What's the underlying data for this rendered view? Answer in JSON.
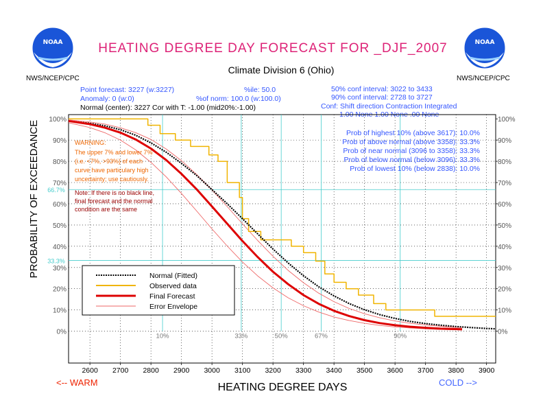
{
  "header": {
    "title": "HEATING DEGREE DAY FORECAST FOR _DJF_2007",
    "subtitle": "Climate Division 6 (Ohio)",
    "org_left": "NWS/NCEP/CPC",
    "org_right": "NWS/NCEP/CPC",
    "logo_text": "NOAA"
  },
  "info": {
    "point_forecast": "Point forecast: 3227 (w:3227)",
    "percentile": "%ile: 50.0",
    "anomaly": "Anomaly: 0 (w:0)",
    "pct_norm": "%of norm:  100.0 (w:100.0)",
    "normal_center": "Normal (center): 3227 Cor with T: -1.00 (mid20%:-1.00)",
    "conf50": "50% conf interval: 3022 to 3433",
    "conf90": "90% conf interval: 2728 to 3727",
    "conf_header": "Conf: Shift direction   Contraction  Integrated",
    "conf_values": "1.00 None        1.00 None  .00 None"
  },
  "probs": [
    "Prob of highest 10% (above 3617): 10.0%",
    "Prob of above normal (above 3358): 33.3%",
    "Prob of near normal (3096 to 3358): 33.3%",
    "Prob of below normal (below 3096): 33.3%",
    "Prob of lowest 10% (below 2838): 10.0%"
  ],
  "warning": {
    "title": "WARNING:",
    "lines": [
      "The upper 7% and lower 7%",
      "(i.e. <7%, >93%) of each",
      "curve have particulary high",
      "uncertainty; use cautiously."
    ]
  },
  "note": {
    "lines": [
      "Note: If there is no black line,",
      "final forecast and  the normal",
      "condition are the same"
    ]
  },
  "side_labels": {
    "left_high": "66.7%",
    "left_low": "33.3%"
  },
  "colors": {
    "title": "#dd2277",
    "normal": "#000000",
    "observed": "#f0b400",
    "forecast": "#dd0000",
    "envelope": "#ee6666",
    "info_blue": "#3355ff",
    "warning": "#ee6600",
    "note": "#990000",
    "cyan": "#44cccc",
    "nav_red": "#ee2200",
    "nav_blue": "#4466ff"
  },
  "nav": {
    "warm": "<-- WARM",
    "cold": "COLD -->"
  },
  "chart_data": {
    "type": "line",
    "xlabel": "HEATING DEGREE DAYS",
    "ylabel": "PROBABILITY OF EXCEEDANCE",
    "xlim": [
      2530,
      3930
    ],
    "ylim": [
      -15,
      102
    ],
    "x_ticks": [
      2600,
      2700,
      2800,
      2900,
      3000,
      3100,
      3200,
      3300,
      3400,
      3500,
      3600,
      3700,
      3800,
      3900
    ],
    "y_ticks": [
      0,
      10,
      20,
      30,
      40,
      50,
      60,
      70,
      80,
      90,
      100
    ],
    "y_tick_labels_left": [
      "0%",
      "10%",
      "20%",
      "30%",
      "40%",
      "50%",
      "60%",
      "70%",
      "80%",
      "90%",
      "100%"
    ],
    "y_tick_labels_right": [
      "0%",
      "10%",
      "20%",
      "30%",
      "40%",
      "50%",
      "60%",
      "70%",
      "80%",
      "90%",
      "100%"
    ],
    "ref_lines_y": [
      66.7,
      33.3
    ],
    "ref_lines_x": [
      2838,
      3096,
      3227,
      3358,
      3617
    ],
    "ref_labels": [
      {
        "x": 2838,
        "label": "10%"
      },
      {
        "x": 3096,
        "label": "33%"
      },
      {
        "x": 3227,
        "label": "50%"
      },
      {
        "x": 3358,
        "label": "67%"
      },
      {
        "x": 3617,
        "label": "90%"
      }
    ],
    "legend": {
      "labels": [
        "Normal (Fitted)",
        "Observed data",
        "Final Forecast",
        "Error Envelope"
      ],
      "placement": "lower-left"
    },
    "series": [
      {
        "name": "Normal (Fitted)",
        "x": [
          2530,
          2600,
          2650,
          2700,
          2750,
          2800,
          2850,
          2900,
          2950,
          3000,
          3050,
          3100,
          3150,
          3200,
          3250,
          3300,
          3350,
          3400,
          3450,
          3500,
          3550,
          3600,
          3650,
          3700,
          3750,
          3800,
          3850,
          3900,
          3930
        ],
        "y": [
          99.0,
          97.9,
          96.7,
          94.9,
          92.3,
          88.7,
          84.3,
          79.1,
          73.3,
          66.7,
          60.0,
          53.0,
          45.8,
          38.7,
          32.1,
          26.1,
          20.9,
          16.6,
          13.0,
          10.1,
          7.8,
          6.0,
          4.6,
          3.6,
          2.8,
          2.2,
          1.7,
          1.3,
          1.1
        ]
      },
      {
        "name": "Observed data",
        "x": [
          2530,
          2650,
          2650,
          2790,
          2790,
          2830,
          2830,
          2880,
          2880,
          2930,
          2930,
          2990,
          2990,
          3020,
          3020,
          3050,
          3050,
          3090,
          3090,
          3100,
          3100,
          3120,
          3120,
          3160,
          3160,
          3260,
          3260,
          3300,
          3300,
          3340,
          3340,
          3370,
          3370,
          3400,
          3400,
          3440,
          3440,
          3480,
          3480,
          3530,
          3530,
          3570,
          3570,
          3730,
          3730,
          3930
        ],
        "y": [
          100,
          100,
          100,
          100,
          97,
          97,
          93,
          93,
          90,
          90,
          87,
          87,
          83,
          83,
          80,
          80,
          70,
          70,
          63,
          63,
          53,
          53,
          47,
          47,
          43,
          43,
          40,
          40,
          37,
          37,
          33,
          33,
          27,
          27,
          23,
          23,
          20,
          20,
          17,
          17,
          13,
          13,
          10,
          10,
          7,
          7
        ]
      },
      {
        "name": "Final Forecast",
        "x": [
          2530,
          2600,
          2650,
          2700,
          2750,
          2800,
          2850,
          2900,
          2950,
          3000,
          3050,
          3100,
          3150,
          3200,
          3250,
          3300,
          3350,
          3400,
          3450,
          3500,
          3550,
          3600,
          3650,
          3700,
          3750,
          3800,
          3820
        ],
        "y": [
          99.0,
          97.5,
          95.8,
          93.5,
          90.3,
          86.0,
          80.6,
          74.1,
          66.8,
          58.8,
          50.6,
          42.5,
          34.9,
          28.0,
          22.1,
          17.0,
          12.9,
          9.6,
          7.1,
          5.2,
          3.8,
          2.8,
          2.1,
          1.6,
          1.2,
          1.0,
          0.9
        ]
      },
      {
        "name": "Error Envelope Upper",
        "x": [
          2530,
          2600,
          2650,
          2700,
          2750,
          2800,
          2850,
          2900,
          2950,
          3000,
          3050,
          3100,
          3150,
          3200,
          3250,
          3300,
          3350,
          3400,
          3450,
          3500,
          3550,
          3600,
          3650,
          3700,
          3750,
          3800,
          3820
        ],
        "y": [
          99.5,
          98.5,
          97.5,
          95.8,
          93.5,
          90.3,
          85.8,
          80.3,
          73.8,
          66.5,
          58.7,
          50.6,
          42.7,
          35.3,
          28.6,
          22.8,
          17.9,
          13.9,
          10.7,
          8.2,
          6.3,
          4.8,
          3.7,
          2.9,
          2.3,
          1.8,
          1.7
        ]
      },
      {
        "name": "Error Envelope Lower",
        "x": [
          2530,
          2600,
          2650,
          2700,
          2750,
          2800,
          2850,
          2900,
          2950,
          3000,
          3050,
          3100,
          3150,
          3200,
          3250,
          3300,
          3350,
          3400,
          3450,
          3500,
          3550,
          3600,
          3650,
          3700,
          3750,
          3800,
          3820
        ],
        "y": [
          98.2,
          95.9,
          93.4,
          90.0,
          85.4,
          79.5,
          72.7,
          64.9,
          56.6,
          48.2,
          40.1,
          32.6,
          26.0,
          20.4,
          15.7,
          12.0,
          9.0,
          6.7,
          5.0,
          3.7,
          2.7,
          2.0,
          1.5,
          1.1,
          0.8,
          0.6,
          0.5
        ]
      }
    ]
  }
}
